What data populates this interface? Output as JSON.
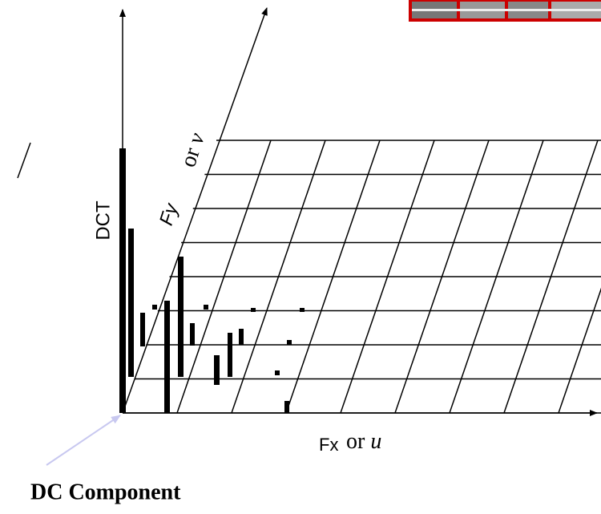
{
  "axes": {
    "vertical": "DCT",
    "depth": {
      "name": "Fy",
      "alt_prefix": "or",
      "alt_variable": "v"
    },
    "horizontal": {
      "name": "Fx",
      "alt_prefix": "or",
      "alt_variable": "u"
    }
  },
  "callout": "DC Component"
}
